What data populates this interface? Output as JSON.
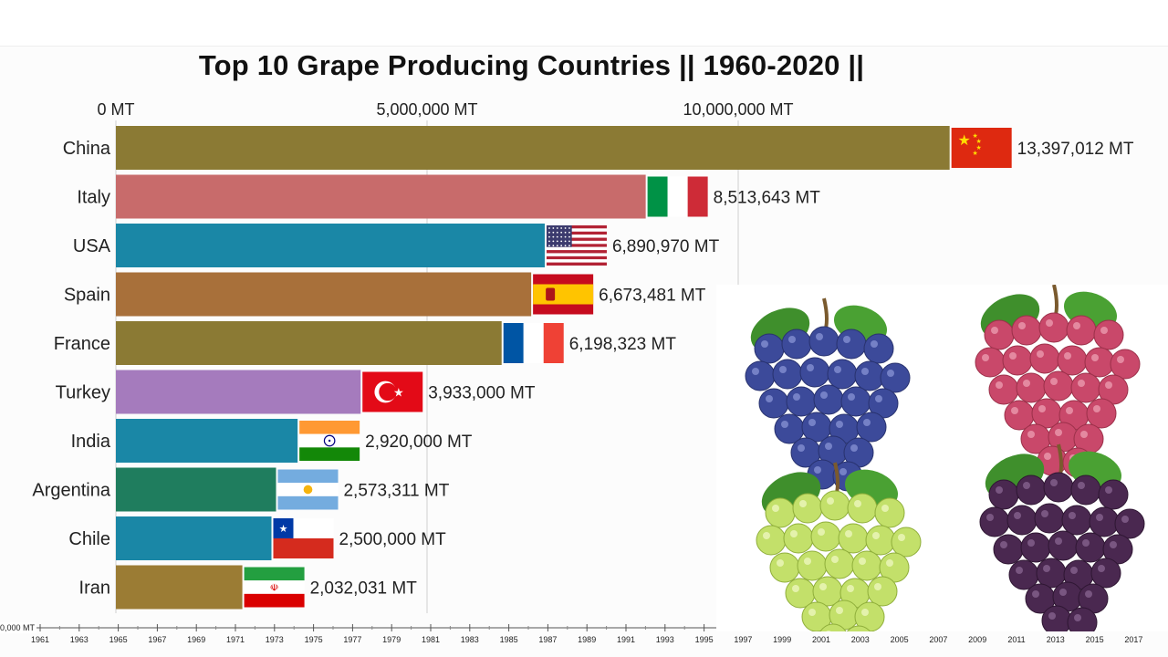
{
  "chart_data": {
    "type": "bar",
    "orientation": "horizontal",
    "title": "Top 10 Grape Producing Countries || 1960-2020 ||",
    "unit": "MT",
    "x_ticks": [
      "0 MT",
      "5,000,000 MT",
      "10,000,000 MT"
    ],
    "xlim": [
      0,
      15000000
    ],
    "categories": [
      "China",
      "Italy",
      "USA",
      "Spain",
      "France",
      "Turkey",
      "India",
      "Argentina",
      "Chile",
      "Iran"
    ],
    "values": [
      13397012,
      8513643,
      6890970,
      6673481,
      6198323,
      3933000,
      2920000,
      2573311,
      2500000,
      2032031
    ],
    "value_labels": [
      "13,397,012 MT",
      "8,513,643 MT",
      "6,890,970 MT",
      "6,673,481 MT",
      "6,198,323 MT",
      "3,933,000 MT",
      "2,920,000 MT",
      "2,573,311 MT",
      "2,500,000 MT",
      "2,032,031 MT"
    ],
    "bar_colors": [
      "#8b7a34",
      "#c86b6b",
      "#1a87a6",
      "#a8703a",
      "#8b7a34",
      "#a57bbd",
      "#1a87a6",
      "#1f7d5e",
      "#1a87a6",
      "#9b7c34"
    ],
    "flags": [
      "china-flag",
      "italy-flag",
      "usa-flag",
      "spain-flag",
      "france-flag",
      "turkey-flag",
      "india-flag",
      "argentina-flag",
      "chile-flag",
      "iran-flag"
    ],
    "grid": true,
    "timeline": {
      "years": [
        "1961",
        "1963",
        "1965",
        "1967",
        "1969",
        "1971",
        "1973",
        "1975",
        "1977",
        "1979",
        "1981",
        "1983",
        "1985",
        "1987",
        "1989",
        "1991",
        "1993",
        "1995",
        "1997",
        "1999",
        "2001",
        "2003",
        "2005",
        "2007",
        "2009",
        "2011",
        "2013",
        "2015",
        "2017"
      ],
      "start_label": "0,000 MT"
    }
  },
  "decor": {
    "grapes": [
      "blue-grapes-icon",
      "red-grapes-icon",
      "green-grapes-icon",
      "purple-grapes-icon"
    ]
  }
}
